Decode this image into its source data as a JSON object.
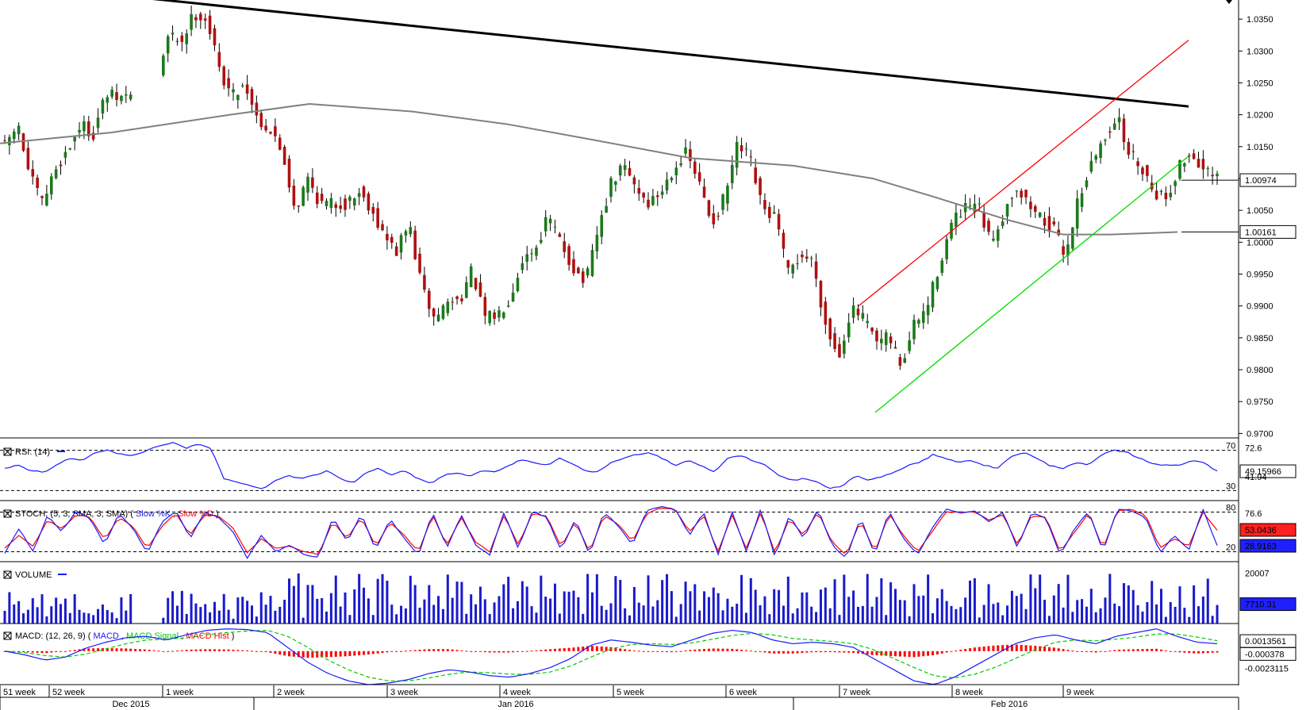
{
  "colors": {
    "up": "#1a7a1a",
    "down": "#b01010",
    "ma": "#808080",
    "trend": "#000000",
    "channel_upper": "#ff0000",
    "channel_lower": "#00dd00",
    "rsi": "#1a1aff",
    "stoch_k": "#1a1aff",
    "stoch_d": "#ff0000",
    "volume": "#1a1acc",
    "macd": "#1a1aff",
    "macd_signal": "#00cc00",
    "macd_hist": "#ff0000",
    "axis": "#000000"
  },
  "chart_data": {
    "type": "candlestick",
    "price_axis": {
      "ticks": [
        "1.0350",
        "1.0300",
        "1.0250",
        "1.0200",
        "1.0150",
        "1.0100",
        "1.0050",
        "1.0000",
        "0.9950",
        "0.9900",
        "0.9850",
        "0.9800",
        "0.9750",
        "0.9700"
      ],
      "range": [
        0.9693,
        1.038
      ],
      "last_price": "1.00974",
      "ma_value": "1.00161"
    },
    "time_axis": {
      "week_labels": [
        "51 week",
        "52 week",
        "1 week",
        "2 week",
        "3 week",
        "4 week",
        "5 week",
        "6 week",
        "7 week",
        "8 week",
        "9 week"
      ],
      "month_labels": [
        "Dec 2015",
        "Jan 2016",
        "Feb 2016"
      ]
    },
    "price_keypoints": [
      1.015,
      1.0185,
      1.0102,
      1.006,
      1.0115,
      1.0145,
      1.0185,
      1.017,
      1.0232,
      1.0225,
      1.0232,
      1.0215,
      1.0252,
      1.0325,
      1.0315,
      1.036,
      1.035,
      1.027,
      1.023,
      1.025,
      1.0195,
      1.0175,
      1.014,
      1.005,
      1.01,
      1.006,
      1.006,
      1.006,
      1.008,
      1.0055,
      1.001,
      0.9985,
      1.003,
      0.993,
      0.988,
      0.9905,
      0.991,
      0.9955,
      0.988,
      0.9885,
      0.9915,
      0.9975,
      0.999,
      1.004,
      1.0,
      0.996,
      0.9935,
      1.002,
      1.009,
      1.012,
      1.0085,
      1.006,
      1.008,
      1.012,
      1.014,
      1.009,
      1.003,
      1.007,
      1.015,
      1.013,
      1.005,
      1.004,
      0.995,
      0.998,
      0.997,
      0.987,
      0.982,
      0.9895,
      0.988,
      0.984,
      0.985,
      0.9805,
      0.987,
      0.9895,
      0.9965,
      1.003,
      1.005,
      1.006,
      1.0,
      1.004,
      1.009,
      1.006,
      1.004,
      1.002,
      0.998,
      1.007,
      1.012,
      1.016,
      1.02,
      1.014,
      1.012,
      1.008,
      1.007,
      1.012,
      1.014,
      1.011,
      1.0097
    ],
    "moving_average": {
      "points": [
        [
          0,
          1.0155
        ],
        [
          140,
          1.0172
        ],
        [
          290,
          1.02
        ],
        [
          390,
          1.0217
        ],
        [
          520,
          1.0205
        ],
        [
          640,
          1.0185
        ],
        [
          750,
          1.016
        ],
        [
          870,
          1.0132
        ],
        [
          1000,
          1.012
        ],
        [
          1100,
          1.01
        ],
        [
          1180,
          1.007
        ],
        [
          1270,
          1.0035
        ],
        [
          1340,
          1.0012
        ],
        [
          1400,
          1.0012
        ],
        [
          1484,
          1.0016
        ]
      ]
    },
    "trendline": {
      "from": [
        160,
        1.0386
      ],
      "to": [
        1498,
        1.0213
      ]
    },
    "channel_upper": {
      "from": [
        1082,
        0.99
      ],
      "to": [
        1498,
        1.0317
      ]
    },
    "channel_lower": {
      "from": [
        1103,
        0.9733
      ],
      "to": [
        1498,
        1.0135
      ]
    },
    "rsi": {
      "label": "RSI: (14)",
      "ticks": [
        "70",
        "30"
      ],
      "right_labels": [
        "72.6",
        "49.15966",
        "41.94"
      ],
      "range": [
        20,
        80
      ],
      "keypoints": [
        52,
        55,
        50,
        48,
        55,
        62,
        60,
        68,
        70,
        66,
        65,
        70,
        74,
        78,
        72,
        76,
        72,
        42,
        38,
        35,
        32,
        40,
        45,
        42,
        45,
        50,
        42,
        38,
        48,
        52,
        45,
        50,
        42,
        37,
        45,
        48,
        44,
        50,
        48,
        55,
        60,
        58,
        55,
        62,
        56,
        50,
        48,
        58,
        62,
        66,
        68,
        62,
        55,
        60,
        55,
        48,
        62,
        65,
        60,
        55,
        45,
        40,
        42,
        38,
        32,
        35,
        45,
        40,
        44,
        48,
        55,
        58,
        66,
        62,
        58,
        60,
        55,
        52,
        64,
        68,
        62,
        55,
        52,
        58,
        55,
        65,
        70,
        68,
        62,
        57,
        55,
        55,
        60,
        58,
        49
      ]
    },
    "stochastic": {
      "label_prefix": "STOCH: (5, 3, SMA, 3, SMA)",
      "label_k": "Slow %K",
      "label_d": "Slow %D",
      "ticks": [
        "80",
        "20"
      ],
      "right_labels": [
        "76.6",
        "53.0436",
        "28.9163"
      ],
      "range": [
        5,
        95
      ],
      "k_keypoints": [
        18,
        55,
        20,
        75,
        50,
        82,
        70,
        30,
        78,
        55,
        18,
        65,
        82,
        40,
        80,
        72,
        50,
        10,
        45,
        20,
        30,
        15,
        12,
        72,
        35,
        78,
        22,
        70,
        40,
        15,
        80,
        25,
        76,
        30,
        15,
        80,
        25,
        82,
        72,
        22,
        70,
        15,
        80,
        60,
        30,
        82,
        88,
        85,
        45,
        80,
        15,
        80,
        20,
        85,
        12,
        75,
        40,
        85,
        30,
        10,
        72,
        15,
        82,
        40,
        15,
        55,
        85,
        78,
        82,
        65,
        80,
        25,
        80,
        70,
        15,
        55,
        82,
        20,
        85,
        82,
        72,
        18,
        45,
        22,
        85,
        29
      ],
      "d_keypoints": [
        25,
        45,
        28,
        68,
        55,
        76,
        72,
        38,
        72,
        58,
        25,
        58,
        78,
        45,
        76,
        74,
        56,
        18,
        40,
        25,
        28,
        20,
        16,
        65,
        40,
        72,
        28,
        64,
        45,
        20,
        75,
        30,
        72,
        35,
        20,
        75,
        30,
        78,
        74,
        28,
        65,
        20,
        75,
        62,
        35,
        78,
        86,
        84,
        50,
        75,
        20,
        75,
        25,
        80,
        18,
        70,
        45,
        80,
        35,
        15,
        67,
        20,
        77,
        45,
        20,
        50,
        80,
        80,
        80,
        68,
        76,
        30,
        75,
        72,
        20,
        50,
        78,
        25,
        82,
        84,
        75,
        25,
        40,
        28,
        80,
        53
      ]
    },
    "volume": {
      "label": "VOLUME",
      "ticks": [
        "20007"
      ],
      "right_label": "7710.31",
      "range": [
        0,
        24000
      ]
    },
    "macd": {
      "label_prefix": "MACD: (12, 26, 9)",
      "label_macd": "MACD",
      "label_signal": "MACD Signal",
      "label_hist": "MACD Hist",
      "right_labels": [
        "0.0013561",
        "-0.000378",
        "-0.0023115"
      ],
      "range": [
        -0.0045,
        0.0035
      ],
      "macd_keypoints": [
        0.0,
        -0.0005,
        -0.0012,
        -0.0008,
        0.0004,
        0.0012,
        0.0018,
        0.002,
        0.0015,
        0.0022,
        0.0028,
        0.003,
        0.0029,
        0.0025,
        0.0005,
        -0.0015,
        -0.003,
        -0.004,
        -0.0045,
        -0.0043,
        -0.0038,
        -0.003,
        -0.0025,
        -0.0028,
        -0.0033,
        -0.0035,
        -0.003,
        -0.0022,
        -0.001,
        0.0008,
        0.0015,
        0.0012,
        0.0008,
        0.0006,
        0.0015,
        0.0024,
        0.0028,
        0.0025,
        0.0015,
        0.001,
        0.0012,
        0.001,
        0.0005,
        -0.001,
        -0.0025,
        -0.004,
        -0.0045,
        -0.0035,
        -0.002,
        -0.0005,
        0.001,
        0.0018,
        0.0022,
        0.0015,
        0.001,
        0.002,
        0.0025,
        0.003,
        0.002,
        0.0012,
        0.001
      ],
      "signal_keypoints": [
        0.0,
        -0.0002,
        -0.0006,
        -0.0008,
        -0.0004,
        0.0003,
        0.001,
        0.0015,
        0.0016,
        0.0018,
        0.0022,
        0.0025,
        0.0027,
        0.0028,
        0.002,
        0.0005,
        -0.0012,
        -0.0025,
        -0.0035,
        -0.004,
        -0.004,
        -0.0036,
        -0.0031,
        -0.0028,
        -0.0029,
        -0.0031,
        -0.0031,
        -0.0028,
        -0.002,
        -0.0008,
        0.0003,
        0.0009,
        0.001,
        0.0009,
        0.0011,
        0.0016,
        0.0021,
        0.0024,
        0.0022,
        0.0017,
        0.0015,
        0.0013,
        0.001,
        0.0002,
        -0.001,
        -0.0022,
        -0.0033,
        -0.0036,
        -0.0031,
        -0.0022,
        -0.001,
        0.0002,
        0.0012,
        0.0015,
        0.0014,
        0.0016,
        0.0019,
        0.0023,
        0.0023,
        0.0019,
        0.0014
      ]
    }
  }
}
